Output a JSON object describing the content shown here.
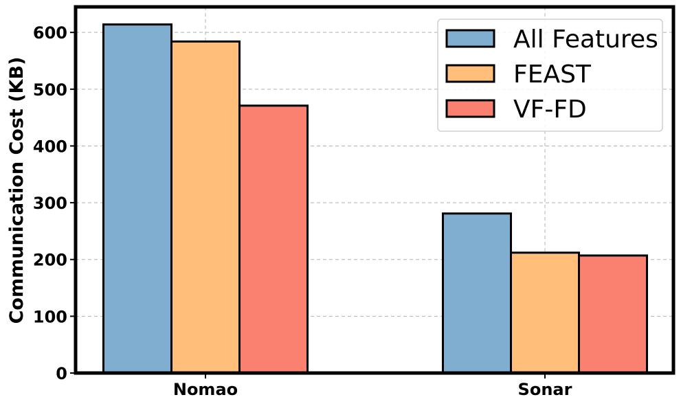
{
  "chart_data": {
    "type": "bar",
    "categories": [
      "Nomao",
      "Sonar"
    ],
    "series": [
      {
        "name": "All Features",
        "color": "#80aed1",
        "values": [
          614,
          281
        ]
      },
      {
        "name": "FEAST",
        "color": "#ffbe7a",
        "values": [
          584,
          212
        ]
      },
      {
        "name": "VF-FD",
        "color": "#fa8070",
        "values": [
          471,
          207
        ]
      }
    ],
    "title": "",
    "xlabel": "",
    "ylabel": "Communication Cost (KB)",
    "ylim": [
      0,
      645
    ],
    "yticks": [
      0,
      100,
      200,
      300,
      400,
      500,
      600
    ],
    "grid": true,
    "legend_position": "top-right"
  }
}
